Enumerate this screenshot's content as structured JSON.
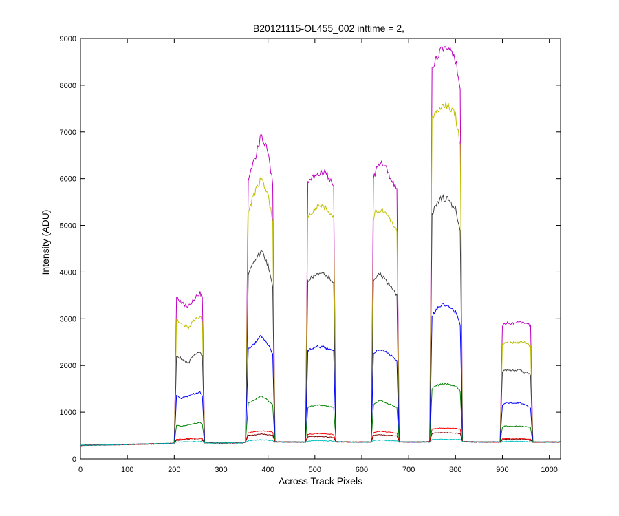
{
  "chart_data": {
    "type": "line",
    "title": "B20121115-OL455_002 inttime = 2,",
    "xlabel": "Across Track Pixels",
    "ylabel": "Intensity (ADU)",
    "xlim": [
      0,
      1024
    ],
    "ylim": [
      0,
      9000
    ],
    "xticks": [
      0,
      100,
      200,
      300,
      400,
      500,
      600,
      700,
      800,
      900,
      1000
    ],
    "yticks": [
      0,
      1000,
      2000,
      3000,
      4000,
      5000,
      6000,
      7000,
      8000,
      9000
    ],
    "grid": false,
    "legend": "none",
    "x": [
      0,
      50,
      100,
      150,
      195,
      200,
      205,
      215,
      230,
      245,
      255,
      260,
      265,
      300,
      345,
      352,
      358,
      370,
      385,
      400,
      410,
      415,
      445,
      480,
      485,
      490,
      500,
      515,
      530,
      540,
      545,
      580,
      620,
      625,
      630,
      640,
      650,
      665,
      675,
      680,
      710,
      745,
      750,
      755,
      770,
      785,
      800,
      810,
      815,
      850,
      895,
      900,
      905,
      920,
      935,
      950,
      960,
      965,
      1000,
      1024
    ],
    "series": [
      {
        "color": "#bf00bf",
        "values": [
          290,
          300,
          310,
          320,
          330,
          345,
          3450,
          3350,
          3250,
          3450,
          3550,
          3450,
          345,
          340,
          345,
          360,
          6000,
          6350,
          6900,
          6600,
          5900,
          365,
          360,
          360,
          5900,
          5950,
          6050,
          6150,
          6050,
          5850,
          365,
          360,
          360,
          6050,
          6150,
          6350,
          6250,
          5950,
          5750,
          365,
          360,
          365,
          8400,
          8500,
          8750,
          8800,
          8550,
          7900,
          370,
          360,
          360,
          2850,
          2900,
          2900,
          2950,
          2900,
          2850,
          360,
          360,
          360
        ]
      },
      {
        "color": "#bfbf00",
        "values": [
          290,
          300,
          310,
          320,
          330,
          345,
          3000,
          2900,
          2800,
          3000,
          3050,
          2950,
          345,
          340,
          345,
          360,
          5300,
          5650,
          6000,
          5650,
          5100,
          365,
          360,
          360,
          5150,
          5250,
          5350,
          5450,
          5300,
          5200,
          365,
          360,
          360,
          5150,
          5300,
          5350,
          5250,
          5050,
          4850,
          365,
          360,
          365,
          7250,
          7350,
          7600,
          7550,
          7350,
          6750,
          370,
          360,
          360,
          2450,
          2500,
          2500,
          2500,
          2500,
          2400,
          360,
          360,
          360
        ]
      },
      {
        "color": "#404040",
        "values": [
          290,
          300,
          310,
          320,
          330,
          345,
          2200,
          2150,
          2050,
          2250,
          2300,
          2200,
          345,
          340,
          345,
          360,
          3950,
          4200,
          4450,
          4150,
          3650,
          365,
          360,
          360,
          3800,
          3850,
          3950,
          4000,
          3900,
          3750,
          365,
          360,
          360,
          3800,
          3900,
          3950,
          3850,
          3650,
          3500,
          365,
          360,
          365,
          5200,
          5350,
          5600,
          5550,
          5350,
          4850,
          370,
          360,
          360,
          1850,
          1900,
          1900,
          1900,
          1850,
          1800,
          360,
          360,
          360
        ]
      },
      {
        "color": "#0000ff",
        "values": [
          290,
          300,
          310,
          320,
          330,
          345,
          1350,
          1300,
          1350,
          1400,
          1420,
          1350,
          345,
          340,
          345,
          360,
          2350,
          2450,
          2650,
          2450,
          2250,
          365,
          360,
          360,
          2300,
          2350,
          2400,
          2400,
          2350,
          2300,
          365,
          360,
          360,
          2250,
          2300,
          2350,
          2300,
          2200,
          2100,
          365,
          360,
          365,
          3050,
          3150,
          3300,
          3250,
          3150,
          2850,
          370,
          360,
          360,
          1150,
          1200,
          1200,
          1200,
          1150,
          1100,
          360,
          360,
          360
        ]
      },
      {
        "color": "#008000",
        "values": [
          290,
          300,
          310,
          320,
          330,
          345,
          720,
          700,
          730,
          760,
          780,
          740,
          345,
          340,
          345,
          360,
          1200,
          1250,
          1350,
          1250,
          1150,
          365,
          360,
          360,
          1100,
          1120,
          1150,
          1150,
          1120,
          1100,
          365,
          360,
          360,
          1150,
          1200,
          1250,
          1200,
          1150,
          1100,
          365,
          360,
          365,
          1500,
          1550,
          1600,
          1600,
          1550,
          1450,
          370,
          360,
          360,
          680,
          700,
          700,
          700,
          690,
          670,
          360,
          360,
          360
        ]
      },
      {
        "color": "#ff0000",
        "values": [
          290,
          300,
          310,
          320,
          330,
          345,
          420,
          420,
          430,
          440,
          440,
          430,
          345,
          340,
          345,
          360,
          560,
          580,
          600,
          590,
          570,
          365,
          360,
          360,
          520,
          530,
          540,
          540,
          530,
          520,
          365,
          360,
          360,
          560,
          580,
          590,
          580,
          560,
          550,
          365,
          360,
          365,
          640,
          650,
          660,
          660,
          650,
          640,
          370,
          360,
          360,
          430,
          440,
          440,
          440,
          430,
          420,
          360,
          360,
          360
        ]
      },
      {
        "color": "#800000",
        "values": [
          290,
          300,
          310,
          320,
          330,
          345,
          400,
          400,
          410,
          410,
          410,
          400,
          345,
          340,
          345,
          360,
          500,
          510,
          530,
          520,
          500,
          365,
          360,
          360,
          470,
          480,
          480,
          480,
          470,
          460,
          365,
          360,
          360,
          500,
          510,
          520,
          510,
          500,
          490,
          365,
          360,
          365,
          540,
          550,
          560,
          560,
          550,
          540,
          370,
          360,
          360,
          410,
          420,
          420,
          420,
          410,
          400,
          360,
          360,
          360
        ]
      },
      {
        "color": "#00bfbf",
        "values": [
          290,
          300,
          310,
          320,
          330,
          345,
          360,
          360,
          365,
          370,
          370,
          365,
          345,
          340,
          345,
          360,
          390,
          400,
          410,
          400,
          390,
          365,
          360,
          360,
          380,
          385,
          390,
          390,
          385,
          380,
          365,
          360,
          360,
          390,
          395,
          400,
          395,
          390,
          385,
          365,
          360,
          365,
          410,
          415,
          420,
          420,
          415,
          410,
          370,
          360,
          360,
          370,
          375,
          375,
          375,
          370,
          365,
          360,
          360,
          360
        ]
      }
    ]
  }
}
